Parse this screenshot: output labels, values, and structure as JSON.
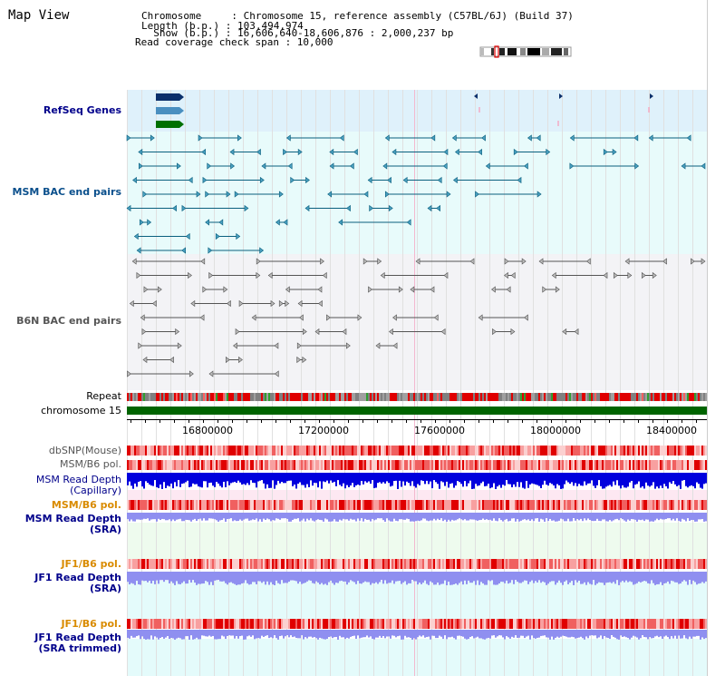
{
  "header": {
    "title": "Map View",
    "info_lines": [
      "Chromosome     : Chromosome 15, reference assembly (C57BL/6J) (Build 37)",
      "Length (b.p.) : 103,494,974",
      "  Show (b.p.) : 16,606,640-18,606,876 : 2,000,237 bp",
      "Read coverage check span : 10,000"
    ]
  },
  "axis": {
    "ticks": [
      "16800000",
      "17200000",
      "17600000",
      "18000000",
      "18400000"
    ]
  },
  "tracks": [
    {
      "label": "RefSeq Genes",
      "color": "#00008b"
    },
    {
      "label": "MSM BAC end pairs",
      "color": "#0a4f8c"
    },
    {
      "label": "B6N BAC end pairs",
      "color": "#555555"
    },
    {
      "label": "Repeat",
      "color": "#000000"
    },
    {
      "label": "chromosome 15",
      "color": "#000000"
    },
    {
      "label": "dbSNP(Mouse)",
      "color": "#555555"
    },
    {
      "label": "MSM/B6 pol.",
      "color": "#555555"
    },
    {
      "label": "MSM Read Depth",
      "color": "#00008b"
    },
    {
      "label": "(Capillary)",
      "color": "#00008b"
    },
    {
      "label": "MSM/B6 pol.",
      "color": "#d98b00"
    },
    {
      "label": "MSM Read Depth",
      "color": "#00008b"
    },
    {
      "label": "(SRA)",
      "color": "#00008b"
    },
    {
      "label": "JF1/B6 pol.",
      "color": "#d98b00"
    },
    {
      "label": "JF1 Read Depth",
      "color": "#00008b"
    },
    {
      "label": "(SRA)",
      "color": "#00008b"
    },
    {
      "label": "JF1/B6 pol.",
      "color": "#d98b00"
    },
    {
      "label": "JF1 Read Depth",
      "color": "#00008b"
    },
    {
      "label": "(SRA trimmed)",
      "color": "#00008b"
    }
  ],
  "colors": {
    "refseq_bg": "#dff1fb",
    "msm_bg": "#e8fbfb",
    "b6n_bg": "#f3f3f6",
    "chromosome_bar": "#006400",
    "depth_blue": "#0000dd",
    "depth_light": "#8f8ff0",
    "snp_red": "#e00000"
  }
}
